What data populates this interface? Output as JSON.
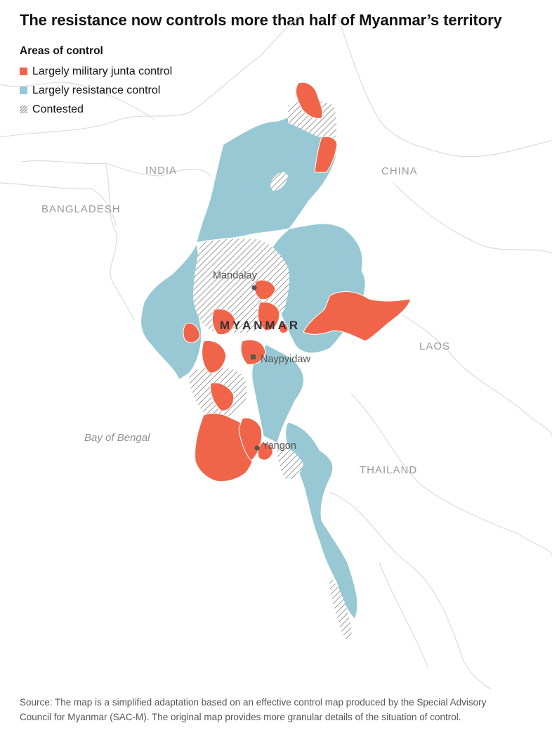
{
  "title": "The resistance now controls more than half of Myanmar’s territory",
  "legend": {
    "title": "Areas of control",
    "items": [
      {
        "label": "Largely military junta control",
        "color": "#f0654a",
        "pattern": "solid"
      },
      {
        "label": "Largely resistance control",
        "color": "#97c8d3",
        "pattern": "solid"
      },
      {
        "label": "Contested",
        "color": "#9a9a9a",
        "pattern": "diagonal-hatch"
      }
    ]
  },
  "map": {
    "country_label": "MYANMAR",
    "neighbors": [
      "INDIA",
      "CHINA",
      "BANGLADESH",
      "LAOS",
      "THAILAND"
    ],
    "water": [
      "Bay of Bengal"
    ],
    "cities": [
      {
        "name": "Mandalay",
        "marker": "dot"
      },
      {
        "name": "Naypyidaw",
        "marker": "square"
      },
      {
        "name": "Yangon",
        "marker": "dot"
      }
    ],
    "colors": {
      "junta": "#f0654a",
      "resistance": "#97c8d3",
      "contested": "#9a9a9a",
      "border": "#d6d6d6"
    }
  },
  "source": "Source: The map is a simplified adaptation based on an effective control map produced by the Special Advisory Council for Myanmar (SAC-M). The original map provides more granular details of the situation of control."
}
